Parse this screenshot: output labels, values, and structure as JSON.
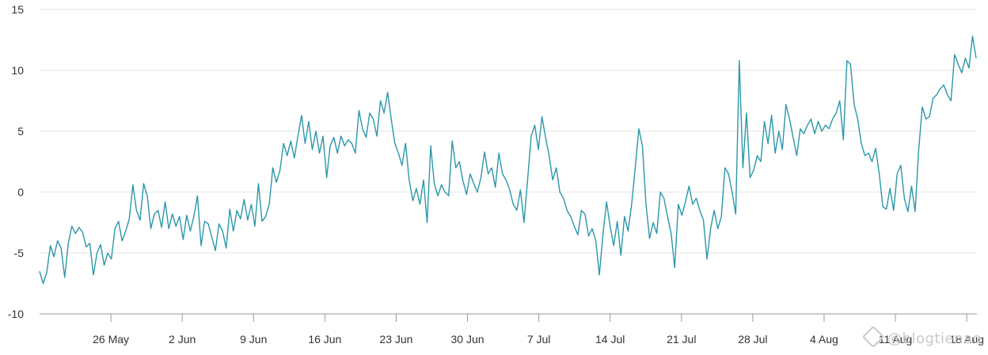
{
  "chart_data": {
    "type": "line",
    "title": "",
    "xlabel": "",
    "ylabel": "",
    "ylim": [
      -10,
      15
    ],
    "y_ticks": [
      "15",
      "10",
      "5",
      "0",
      "-5",
      "-10"
    ],
    "x_ticks": [
      "26 May",
      "2 Jun",
      "9 Jun",
      "16 Jun",
      "23 Jun",
      "30 Jun",
      "7 Jul",
      "14 Jul",
      "21 Jul",
      "28 Jul",
      "4 Aug",
      "11 Aug",
      "18 Aug"
    ],
    "x_start": "19 May",
    "x_end": "19 Aug",
    "grid": true,
    "legend": "none",
    "line_color": "#2b97aa",
    "series": [
      {
        "values": [
          -6.5,
          -7.5,
          -6.6,
          -4.4,
          -5.3,
          -4.0,
          -4.6,
          -7.0,
          -4.2,
          -2.8,
          -3.4,
          -2.9,
          -3.3,
          -4.5,
          -4.2,
          -6.8,
          -5.0,
          -4.3,
          -6.0,
          -5.0,
          -5.5,
          -3.0,
          -2.4,
          -4.0,
          -3.2,
          -2.2,
          0.6,
          -1.5,
          -2.3,
          0.7,
          -0.3,
          -3.0,
          -1.8,
          -1.5,
          -2.9,
          -0.8,
          -3.0,
          -1.8,
          -2.8,
          -2.0,
          -3.9,
          -1.9,
          -3.2,
          -2.0,
          -0.3,
          -4.4,
          -2.4,
          -2.6,
          -3.7,
          -4.8,
          -2.6,
          -3.2,
          -4.6,
          -1.4,
          -3.2,
          -1.5,
          -2.2,
          -0.6,
          -2.3,
          -1.0,
          -2.8,
          0.7,
          -2.4,
          -2.0,
          -1.0,
          2.0,
          0.8,
          1.8,
          4.0,
          3.0,
          4.2,
          2.8,
          4.6,
          6.3,
          4.0,
          5.8,
          3.5,
          5.0,
          3.2,
          4.6,
          1.2,
          3.8,
          4.5,
          3.2,
          4.6,
          3.8,
          4.3,
          4.0,
          3.2,
          6.7,
          5.2,
          4.5,
          6.5,
          6.0,
          4.6,
          7.5,
          6.5,
          8.2,
          6.0,
          4.0,
          3.2,
          2.2,
          4.0,
          1.0,
          -0.7,
          0.3,
          -1.0,
          1.0,
          -2.5,
          3.8,
          0.7,
          -0.3,
          0.6,
          0.0,
          -0.3,
          4.2,
          2.0,
          2.5,
          0.9,
          -0.2,
          1.5,
          0.7,
          0.0,
          1.2,
          3.3,
          1.5,
          2.0,
          0.4,
          3.2,
          1.5,
          1.0,
          0.2,
          -1.0,
          -1.5,
          0.2,
          -2.5,
          1.0,
          4.6,
          5.5,
          3.5,
          6.2,
          4.5,
          3.0,
          1.0,
          2.0,
          0.0,
          -0.5,
          -1.5,
          -2.0,
          -2.8,
          -3.5,
          -1.5,
          -1.8,
          -3.6,
          -3.0,
          -4.0,
          -6.8,
          -3.5,
          -0.8,
          -2.8,
          -4.4,
          -2.4,
          -5.2,
          -2.0,
          -3.2,
          -1.0,
          2.0,
          5.2,
          3.8,
          -1.0,
          -3.8,
          -2.5,
          -3.4,
          0.0,
          -0.5,
          -2.0,
          -3.4,
          -6.2,
          -1.0,
          -1.9,
          -0.8,
          0.5,
          -1.0,
          -0.5,
          -1.5,
          -2.3,
          -5.5,
          -3.0,
          -1.5,
          -3.0,
          -2.0,
          2.0,
          1.5,
          0.0,
          -1.8,
          10.8,
          2.0,
          6.5,
          1.2,
          1.8,
          3.0,
          2.5,
          5.8,
          4.0,
          6.3,
          3.2,
          5.0,
          3.5,
          7.2,
          6.0,
          4.5,
          3.0,
          5.2,
          4.8,
          5.5,
          6.0,
          4.8,
          5.8,
          5.0,
          5.5,
          5.2,
          6.0,
          6.5,
          7.5,
          4.3,
          10.8,
          10.5,
          7.2,
          6.0,
          4.0,
          3.0,
          3.2,
          2.5,
          3.6,
          1.5,
          -1.2,
          -1.4,
          0.3,
          -1.5,
          1.5,
          2.2,
          -0.5,
          -1.6,
          0.5,
          -1.6,
          3.5,
          7.0,
          6.0,
          6.2,
          7.7,
          8.0,
          8.5,
          8.8,
          8.0,
          7.5,
          11.3,
          10.5,
          9.8,
          11.0,
          10.2,
          12.8,
          11.0
        ]
      }
    ]
  }
}
